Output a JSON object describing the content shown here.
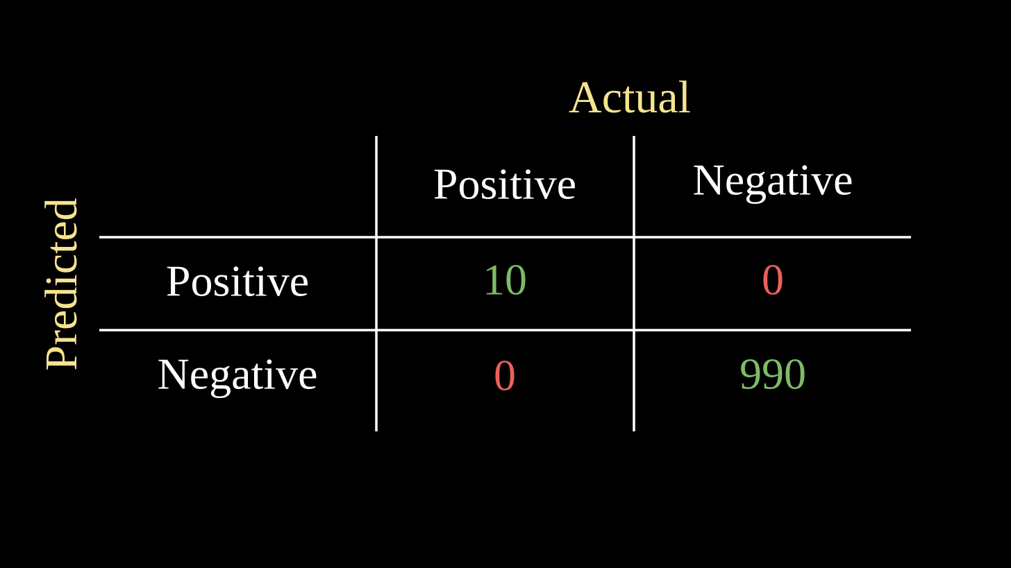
{
  "table": {
    "column_header": "Actual",
    "row_header": "Predicted",
    "columns": [
      "Positive",
      "Negative"
    ],
    "rows": [
      {
        "label": "Positive",
        "cells": [
          10,
          0
        ]
      },
      {
        "label": "Negative",
        "cells": [
          0,
          990
        ]
      }
    ]
  }
}
